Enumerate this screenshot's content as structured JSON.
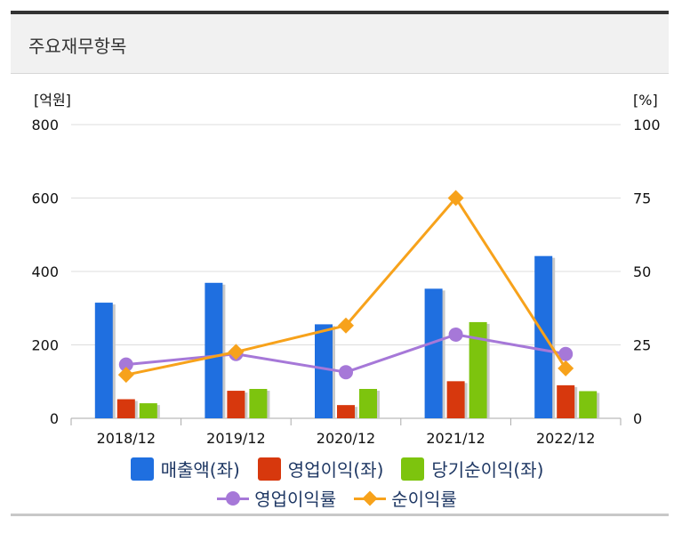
{
  "header": {
    "title": "주요재무항목"
  },
  "chart_data": {
    "type": "bar",
    "categories": [
      "2018/12",
      "2019/12",
      "2020/12",
      "2021/12",
      "2022/12"
    ],
    "left_axis": {
      "unit_label": "[억원]",
      "ticks": [
        "0",
        "200",
        "400",
        "600",
        "800"
      ],
      "ylim": [
        0,
        800
      ]
    },
    "right_axis": {
      "unit_label": "[%]",
      "ticks": [
        "0",
        "25",
        "50",
        "75",
        "100"
      ],
      "ylim": [
        0,
        100
      ]
    },
    "bar_series": [
      {
        "name": "매출액(좌)",
        "color": "#1f6fe0",
        "values": [
          315,
          369,
          256,
          353,
          442
        ]
      },
      {
        "name": "영업이익(좌)",
        "color": "#d7380d",
        "values": [
          52,
          75,
          36,
          101,
          90
        ]
      },
      {
        "name": "당기순이익(좌)",
        "color": "#7dc40e",
        "values": [
          41,
          80,
          80,
          262,
          74
        ]
      }
    ],
    "line_series": [
      {
        "name": "영업이익률",
        "color": "#a678d8",
        "marker": "circle",
        "values": [
          18.3,
          21.9,
          15.7,
          28.5,
          21.9
        ]
      },
      {
        "name": "순이익률",
        "color": "#f7a21b",
        "marker": "diamond",
        "values": [
          14.8,
          22.6,
          31.6,
          75.0,
          17.0
        ]
      }
    ],
    "grid": true,
    "legend_position": "bottom"
  }
}
